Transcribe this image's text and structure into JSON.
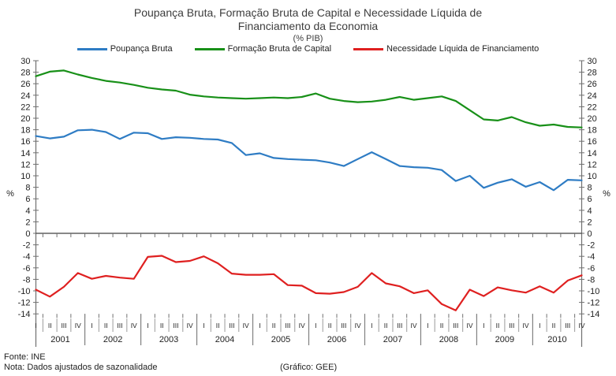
{
  "title": {
    "line1": "Poupança Bruta, Formação Bruta de Capital e Necessidade Líquida de",
    "line2": "Financiamento da Economia"
  },
  "subtitle": "(% PIB)",
  "footer": {
    "fonte": "Fonte: INE",
    "nota": "Nota: Dados ajustados de sazonalidade",
    "credito": "(Gráfico: GEE)"
  },
  "colors": {
    "axis": "#707070",
    "zero_line": "#404040",
    "quarter_separator": "#9a9a9a",
    "year_separator": "#808080",
    "text": "#222222"
  },
  "chart_data": {
    "type": "line",
    "title": "Poupança Bruta, Formação Bruta de Capital e Necessidade Líquida de Financiamento da Economia",
    "subtitle": "(% PIB)",
    "unit_left": "%",
    "unit_right": "%",
    "ylim": [
      -14,
      30
    ],
    "ytick_step": 2,
    "grid": false,
    "zero_line": true,
    "legend_position": "top",
    "years": [
      "2001",
      "2002",
      "2003",
      "2004",
      "2005",
      "2006",
      "2007",
      "2008",
      "2009",
      "2010"
    ],
    "quarter_labels": [
      "I",
      "II",
      "III",
      "IV"
    ],
    "series": [
      {
        "name": "Poupança Bruta",
        "color": "#2E7CC4",
        "values": [
          16.9,
          16.5,
          16.8,
          17.9,
          18.0,
          17.6,
          16.4,
          17.5,
          17.4,
          16.4,
          16.7,
          16.6,
          16.4,
          16.3,
          15.7,
          13.6,
          13.9,
          13.1,
          12.9,
          12.8,
          12.7,
          12.3,
          11.7,
          12.9,
          14.1,
          12.9,
          11.7,
          11.5,
          11.4,
          11.0,
          9.1,
          10.0,
          7.9,
          8.8,
          9.4,
          8.1,
          8.9,
          7.5,
          9.3,
          9.2
        ]
      },
      {
        "name": "Formação Bruta de Capital",
        "color": "#189018",
        "values": [
          27.3,
          28.1,
          28.3,
          27.6,
          27.0,
          26.5,
          26.2,
          25.8,
          25.3,
          25.0,
          24.8,
          24.1,
          23.8,
          23.6,
          23.5,
          23.4,
          23.5,
          23.6,
          23.5,
          23.7,
          24.3,
          23.4,
          23.0,
          22.8,
          22.9,
          23.2,
          23.7,
          23.2,
          23.5,
          23.8,
          23.0,
          21.4,
          19.8,
          19.6,
          20.2,
          19.3,
          18.7,
          18.9,
          18.5,
          18.4
        ]
      },
      {
        "name": "Necessidade Líquida de Financiamento",
        "color": "#DF2020",
        "values": [
          -9.8,
          -11.0,
          -9.3,
          -6.9,
          -7.9,
          -7.4,
          -7.7,
          -7.9,
          -4.1,
          -3.9,
          -5.0,
          -4.8,
          -4.0,
          -5.2,
          -7.0,
          -7.2,
          -7.2,
          -7.1,
          -9.0,
          -9.1,
          -10.4,
          -10.5,
          -10.2,
          -9.3,
          -6.9,
          -8.7,
          -9.2,
          -10.4,
          -9.9,
          -12.3,
          -13.4,
          -9.8,
          -10.9,
          -9.4,
          -9.9,
          -10.3,
          -9.2,
          -10.3,
          -8.2,
          -7.3
        ]
      }
    ]
  }
}
